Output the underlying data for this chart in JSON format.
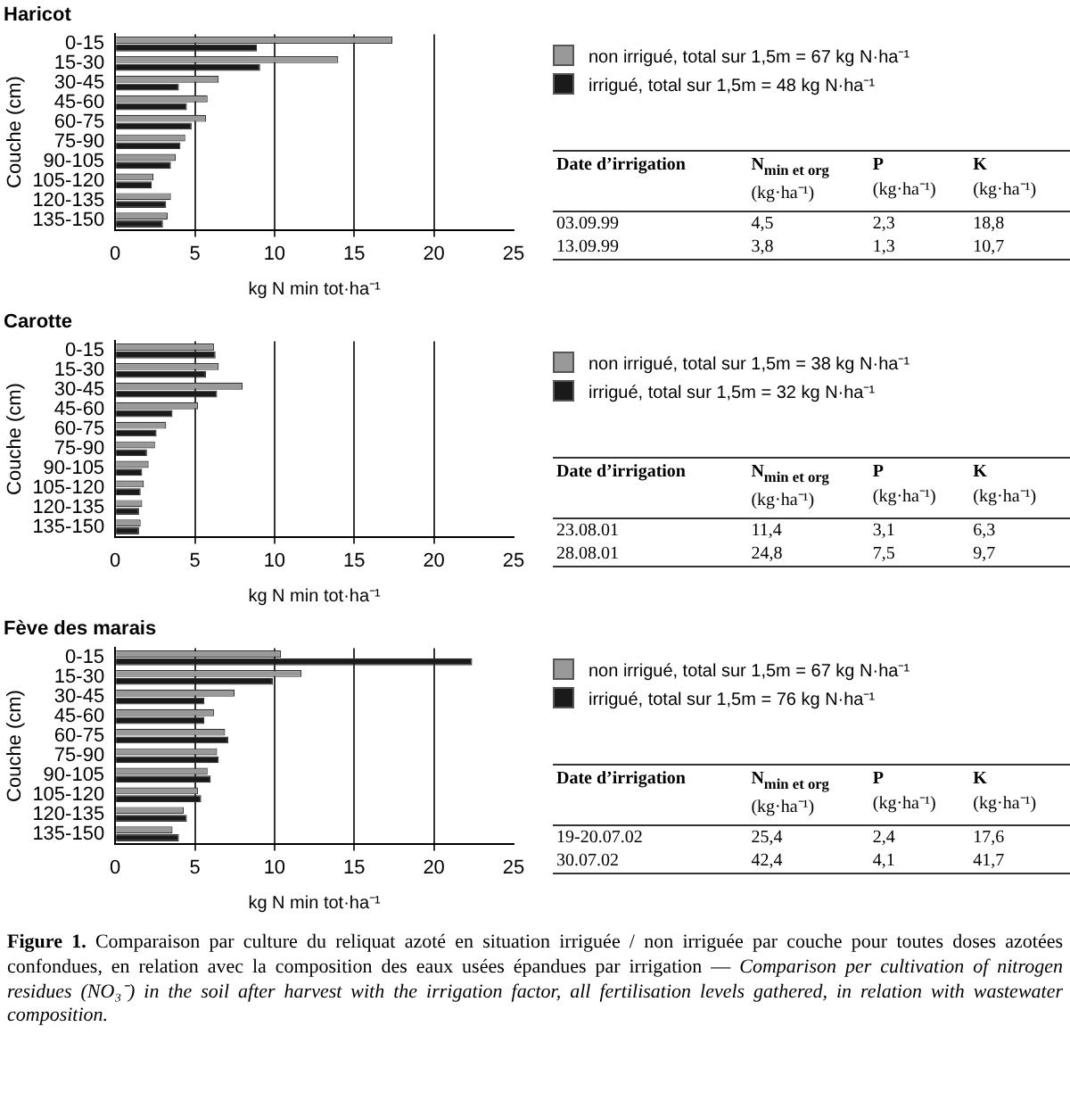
{
  "chart_data": [
    {
      "type": "bar",
      "orientation": "horizontal",
      "title": "Haricot",
      "xlabel": "kg N min tot·ha⁻¹",
      "ylabel": "Couche (cm)",
      "categories": [
        "0-15",
        "15-30",
        "30-45",
        "45-60",
        "60-75",
        "75-90",
        "90-105",
        "105-120",
        "120-135",
        "135-150"
      ],
      "series": [
        {
          "name": "non irrigué, total sur 1,5m = 67 kg N·ha⁻¹",
          "color": "#999999",
          "values": [
            17.4,
            14.0,
            6.5,
            5.8,
            5.7,
            4.4,
            3.8,
            2.4,
            3.5,
            3.3
          ]
        },
        {
          "name": "irrigué, total sur 1,5m = 48 kg N·ha⁻¹",
          "color": "#1a1a1a",
          "values": [
            8.9,
            9.1,
            4.0,
            4.5,
            4.8,
            4.1,
            3.5,
            2.3,
            3.2,
            3.0
          ]
        }
      ],
      "xlim": [
        0,
        25
      ],
      "xticks": [
        0,
        5,
        10,
        15,
        20,
        25
      ],
      "grid": "x",
      "legend": "right"
    },
    {
      "type": "other",
      "annotations": [
        "Date d’irrigation",
        "N$_{min et org}$ (kg·ha⁻¹)",
        "P (kg·ha⁻¹)",
        "K (kg·ha⁻¹)",
        "03.09.99",
        "4,5",
        "2,3",
        "18,8",
        "13.09.99",
        "3,8",
        "1,3",
        "10,7"
      ]
    },
    {
      "type": "bar",
      "orientation": "horizontal",
      "title": "Carotte",
      "xlabel": "kg N min tot·ha⁻¹",
      "ylabel": "Couche (cm)",
      "categories": [
        "0-15",
        "15-30",
        "30-45",
        "45-60",
        "60-75",
        "75-90",
        "90-105",
        "105-120",
        "120-135",
        "135-150"
      ],
      "series": [
        {
          "name": "non irrigué, total sur 1,5m = 38 kg N·ha⁻¹",
          "color": "#999999",
          "values": [
            6.2,
            6.5,
            8.0,
            5.2,
            3.2,
            2.5,
            2.1,
            1.8,
            1.7,
            1.6
          ]
        },
        {
          "name": "irrigué, total sur 1,5m = 32 kg N·ha⁻¹",
          "color": "#1a1a1a",
          "values": [
            6.3,
            5.7,
            6.4,
            3.6,
            2.6,
            2.0,
            1.7,
            1.6,
            1.5,
            1.5
          ]
        }
      ],
      "xlim": [
        0,
        25
      ],
      "xticks": [
        0,
        5,
        10,
        15,
        20,
        25
      ],
      "grid": "x",
      "legend": "right"
    },
    {
      "type": "other",
      "annotations": [
        "Date d’irrigation",
        "N$_{min et org}$ (kg·ha⁻¹)",
        "P (kg·ha⁻¹)",
        "K (kg·ha⁻¹)",
        "23.08.01",
        "11,4",
        "3,1",
        "6,3",
        "28.08.01",
        "24,8",
        "7,5",
        "9,7"
      ]
    },
    {
      "type": "bar",
      "orientation": "horizontal",
      "title": "Fève des marais",
      "xlabel": "kg N min tot·ha⁻¹",
      "ylabel": "Couche (cm)",
      "categories": [
        "0-15",
        "15-30",
        "30-45",
        "45-60",
        "60-75",
        "75-90",
        "90-105",
        "105-120",
        "120-135",
        "135-150"
      ],
      "series": [
        {
          "name": "non irrigué, total sur 1,5m = 67 kg N·ha⁻¹",
          "color": "#999999",
          "values": [
            10.4,
            11.7,
            7.5,
            6.2,
            6.9,
            6.4,
            5.8,
            5.2,
            4.3,
            3.6
          ]
        },
        {
          "name": "irrigué, total sur 1,5m = 76 kg N·ha⁻¹",
          "color": "#1a1a1a",
          "values": [
            22.4,
            9.9,
            5.6,
            5.6,
            7.1,
            6.5,
            6.0,
            5.4,
            4.5,
            4.0
          ]
        }
      ],
      "xlim": [
        0,
        25
      ],
      "xticks": [
        0,
        5,
        10,
        15,
        20,
        25
      ],
      "grid": "x",
      "legend": "right"
    },
    {
      "type": "other",
      "annotations": [
        "Date d’irrigation",
        "N$_{min et org}$ (kg·ha⁻¹)",
        "P (kg·ha⁻¹)",
        "K (kg·ha⁻¹)",
        "19-20.07.02",
        "25,4",
        "2,4",
        "17,6",
        "30.07.02",
        "42,4",
        "4,1",
        "41,7"
      ]
    },
    {
      "type": "other",
      "annotations": [
        "Figure 1.",
        "Comparaison par culture du reliquat azoté en situation irriguée / non irriguée par couche pour toutes doses azotées confondues, en relation avec la composition des eaux usées épandues par irrigation —",
        "Comparison per cultivation of nitrogen residues (NO₃⁻) in the soil after harvest with the irrigation factor, all fertilisation levels gathered, in relation with wastewater composition."
      ]
    }
  ]
}
